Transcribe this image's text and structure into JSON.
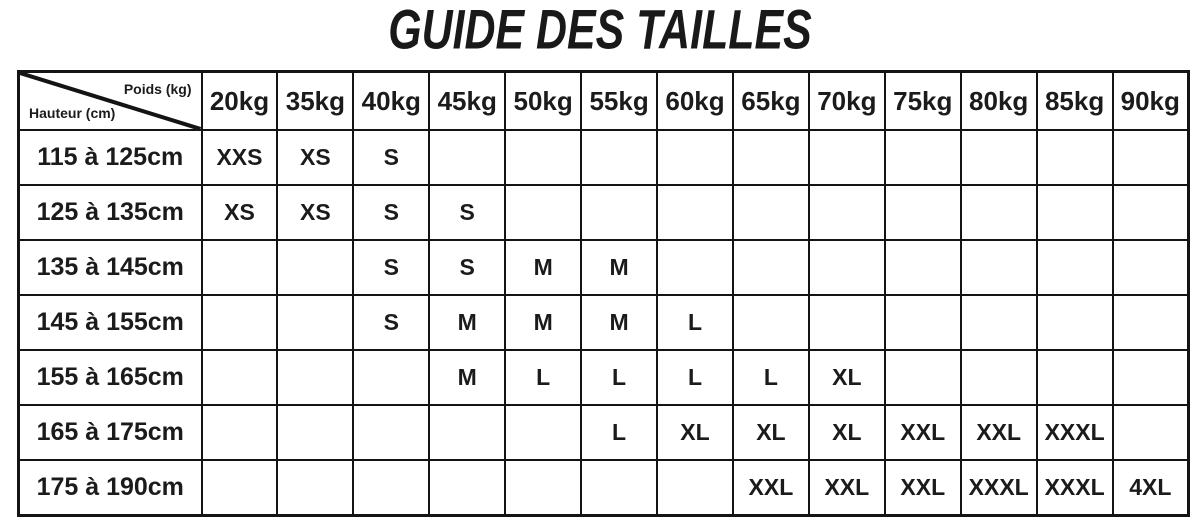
{
  "title": "GUIDE DES TAILLES",
  "size_guide": {
    "corner": {
      "top_label": "Poids (kg)",
      "bottom_label": "Hauteur (cm)"
    },
    "weight_headers": [
      "20kg",
      "35kg",
      "40kg",
      "45kg",
      "50kg",
      "55kg",
      "60kg",
      "65kg",
      "70kg",
      "75kg",
      "80kg",
      "85kg",
      "90kg"
    ],
    "rows": [
      {
        "height_label": "115 à 125cm",
        "sizes": [
          "XXS",
          "XS",
          "S",
          "",
          "",
          "",
          "",
          "",
          "",
          "",
          "",
          "",
          ""
        ]
      },
      {
        "height_label": "125 à 135cm",
        "sizes": [
          "XS",
          "XS",
          "S",
          "S",
          "",
          "",
          "",
          "",
          "",
          "",
          "",
          "",
          ""
        ]
      },
      {
        "height_label": "135 à 145cm",
        "sizes": [
          "",
          "",
          "S",
          "S",
          "M",
          "M",
          "",
          "",
          "",
          "",
          "",
          "",
          ""
        ]
      },
      {
        "height_label": "145 à 155cm",
        "sizes": [
          "",
          "",
          "S",
          "M",
          "M",
          "M",
          "L",
          "",
          "",
          "",
          "",
          "",
          ""
        ]
      },
      {
        "height_label": "155 à 165cm",
        "sizes": [
          "",
          "",
          "",
          "M",
          "L",
          "L",
          "L",
          "L",
          "XL",
          "",
          "",
          "",
          ""
        ]
      },
      {
        "height_label": "165 à 175cm",
        "sizes": [
          "",
          "",
          "",
          "",
          "",
          "L",
          "XL",
          "XL",
          "XL",
          "XXL",
          "XXL",
          "XXXL",
          ""
        ]
      },
      {
        "height_label": "175 à 190cm",
        "sizes": [
          "",
          "",
          "",
          "",
          "",
          "",
          "",
          "XXL",
          "XXL",
          "XXL",
          "XXXL",
          "XXXL",
          "4XL"
        ]
      }
    ],
    "colors": {
      "text": "#1b1b1b",
      "border": "#141414",
      "background": "#ffffff"
    }
  }
}
